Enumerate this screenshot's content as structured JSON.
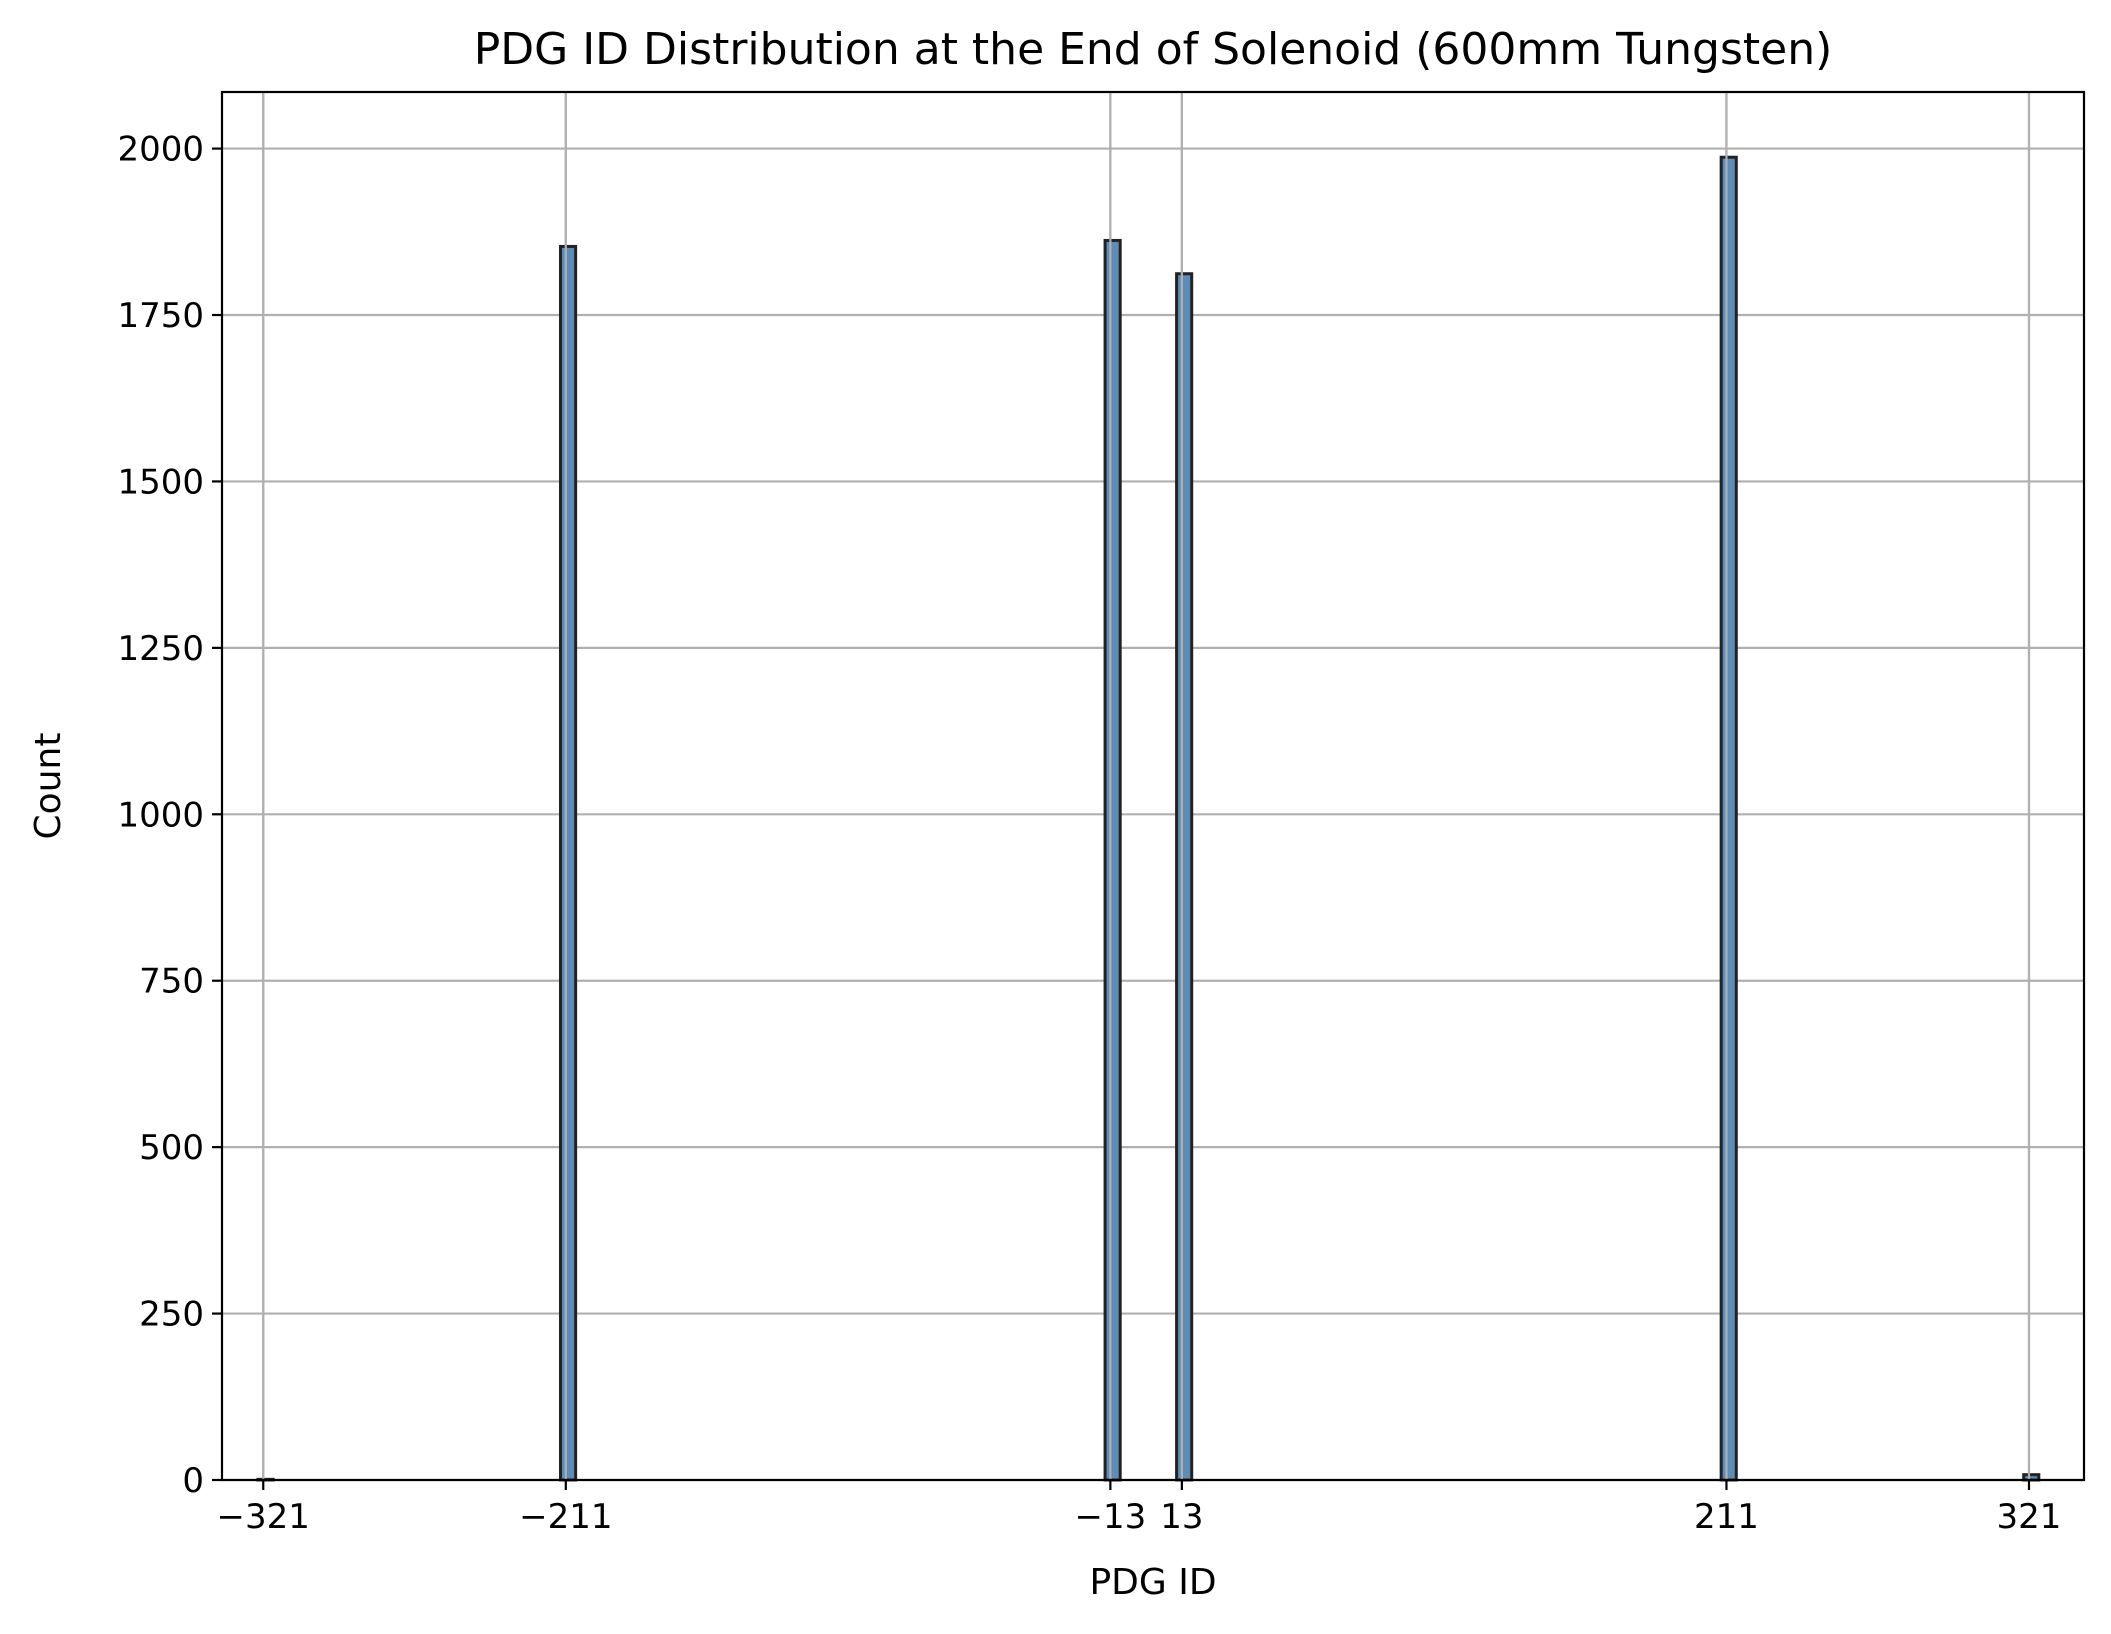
{
  "chart_data": {
    "type": "bar",
    "title": "PDG ID Distribution at the End of Solenoid (600mm Tungsten)",
    "xlabel": "PDG ID",
    "ylabel": "Count",
    "xlim": [
      -336,
      341
    ],
    "ylim": [
      0,
      2085
    ],
    "grid": true,
    "bar_color": "#5b8db8",
    "edge_color": "#222222",
    "grid_color": "#b0b0b0",
    "x": [
      -321,
      -211,
      -13,
      13,
      211,
      321
    ],
    "values": [
      1,
      1853,
      1862,
      1812,
      1987,
      8
    ],
    "xticks": [
      -321,
      -211,
      -13,
      13,
      211,
      321
    ],
    "xtick_labels": [
      "−321",
      "−211",
      "−13",
      "13",
      "211",
      "321"
    ],
    "yticks": [
      0,
      250,
      500,
      750,
      1000,
      1250,
      1500,
      1750,
      2000
    ],
    "ytick_labels": [
      "0",
      "250",
      "500",
      "750",
      "1000",
      "1250",
      "1500",
      "1750",
      "2000"
    ]
  }
}
